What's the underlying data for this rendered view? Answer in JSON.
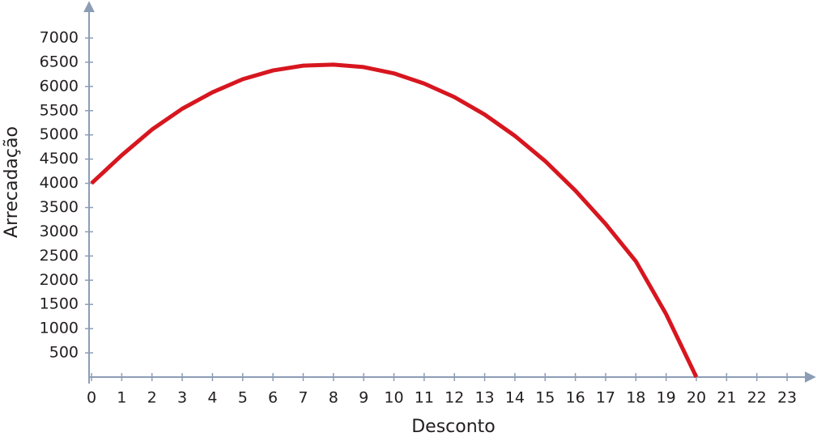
{
  "chart_data": {
    "type": "line",
    "x_label": "Desconto",
    "y_label": "Arrecadação",
    "x": [
      0,
      1,
      2,
      3,
      4,
      5,
      6,
      7,
      8,
      9,
      10,
      11,
      12,
      13,
      14,
      15,
      16,
      17,
      18,
      19,
      20
    ],
    "series": [
      {
        "color": "#d7161f",
        "values": [
          4000,
          4580,
          5110,
          5540,
          5880,
          6150,
          6330,
          6430,
          6450,
          6400,
          6270,
          6060,
          5780,
          5420,
          4980,
          4460,
          3850,
          3160,
          2390,
          1300,
          0
        ]
      }
    ],
    "xlim": [
      0,
      24
    ],
    "ylim": [
      0,
      7700
    ],
    "xticks": [
      0,
      1,
      2,
      3,
      4,
      5,
      6,
      7,
      8,
      9,
      10,
      11,
      12,
      13,
      14,
      15,
      16,
      17,
      18,
      19,
      20,
      21,
      22,
      23
    ],
    "yticks": [
      500,
      1000,
      1500,
      2000,
      2500,
      3000,
      3500,
      4000,
      4500,
      5000,
      5500,
      6000,
      6500,
      7000
    ]
  }
}
